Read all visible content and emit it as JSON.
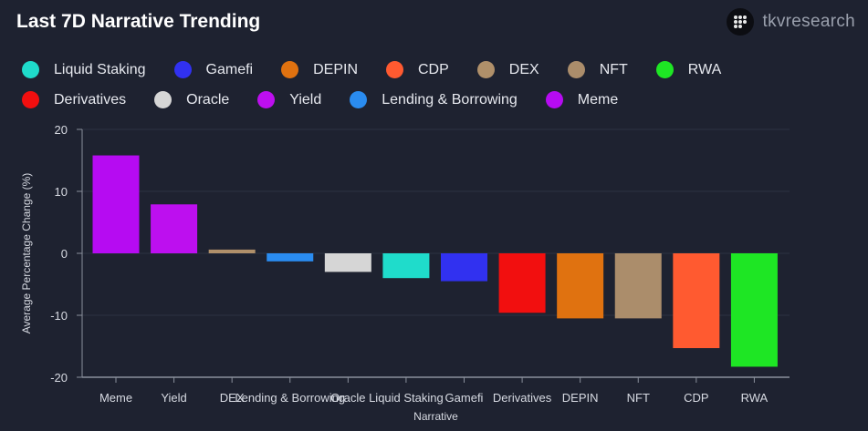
{
  "header": {
    "title": "Last 7D Narrative Trending",
    "brand": "tkvresearch",
    "brand_icon": "tkv-logo-icon"
  },
  "chart_data": {
    "type": "bar",
    "title": "Last 7D Narrative Trending",
    "xlabel": "Narrative",
    "ylabel": "Average Percentage Change (%)",
    "ylim": [
      -20,
      20
    ],
    "yticks": [
      20,
      10,
      0,
      -10,
      -20
    ],
    "grid": true,
    "legend_position": "top",
    "legend": [
      {
        "name": "Liquid Staking",
        "color": "#1fdccb"
      },
      {
        "name": "Gamefi",
        "color": "#3131f0"
      },
      {
        "name": "DEPIN",
        "color": "#e07210"
      },
      {
        "name": "CDP",
        "color": "#ff5a30"
      },
      {
        "name": "DEX",
        "color": "#b0906a"
      },
      {
        "name": "NFT",
        "color": "#ab8d6b"
      },
      {
        "name": "RWA",
        "color": "#1ee624"
      },
      {
        "name": "Derivatives",
        "color": "#f20f0f"
      },
      {
        "name": "Oracle",
        "color": "#d6d6d6"
      },
      {
        "name": "Yield",
        "color": "#bd0fef"
      },
      {
        "name": "Lending & Borrowing",
        "color": "#2a8cf0"
      },
      {
        "name": "Meme",
        "color": "#b60bf2"
      }
    ],
    "categories": [
      "Meme",
      "Yield",
      "DEX",
      "Lending & Borrowing",
      "Oracle",
      "Liquid Staking",
      "Gamefi",
      "Derivatives",
      "DEPIN",
      "NFT",
      "CDP",
      "RWA"
    ],
    "values": [
      15.8,
      7.9,
      0.6,
      -1.3,
      -3.0,
      -4.0,
      -4.5,
      -9.6,
      -10.5,
      -10.5,
      -15.3,
      -18.3
    ],
    "colors": [
      "#b60bf2",
      "#bd0fef",
      "#b0906a",
      "#2a8cf0",
      "#d6d6d6",
      "#1fdccb",
      "#3131f0",
      "#f20f0f",
      "#e07210",
      "#ab8d6b",
      "#ff5a30",
      "#1ee624"
    ]
  }
}
